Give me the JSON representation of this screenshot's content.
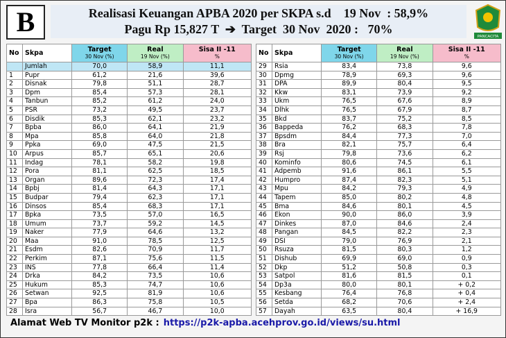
{
  "header": {
    "badge": "B",
    "title_line1": "Realisasi Keuangan APBA 2020 per SKPA s.d    19 Nov  : 58,9%",
    "title_line2": "Pagu Rp 15,827 T  ➔  Target  30 Nov  2020 :   70%",
    "logo_text": "PANCACITA"
  },
  "tables": [
    {
      "columns": [
        {
          "title": "No"
        },
        {
          "title": "Skpa"
        },
        {
          "title": "Target",
          "subtitle": "30 Nov (%)"
        },
        {
          "title": "Real",
          "subtitle": "19 Nov (%)"
        },
        {
          "title": "Sisa II -11",
          "subtitle": "%"
        }
      ],
      "summary": [
        "Jumlah",
        "70,0",
        "58,9",
        "11,1"
      ],
      "rows": [
        [
          "1",
          "Pupr",
          "61,2",
          "21,6",
          "39,6"
        ],
        [
          "2",
          "Disnak",
          "79,8",
          "51,1",
          "28,7"
        ],
        [
          "3",
          "Dpm",
          "85,4",
          "57,3",
          "28,1"
        ],
        [
          "4",
          "Tanbun",
          "85,2",
          "61,2",
          "24,0"
        ],
        [
          "5",
          "PSR",
          "73,2",
          "49,5",
          "23,7"
        ],
        [
          "6",
          "Disdik",
          "85,3",
          "62,1",
          "23,2"
        ],
        [
          "7",
          "Bpba",
          "86,0",
          "64,1",
          "21,9"
        ],
        [
          "8",
          "Mpa",
          "85,8",
          "64,0",
          "21,8"
        ],
        [
          "9",
          "Ppka",
          "69,0",
          "47,5",
          "21,5"
        ],
        [
          "10",
          "Arpus",
          "85,7",
          "65,1",
          "20,6"
        ],
        [
          "11",
          "Indag",
          "78,1",
          "58,2",
          "19,8"
        ],
        [
          "12",
          "Pora",
          "81,1",
          "62,5",
          "18,5"
        ],
        [
          "13",
          "Organ",
          "89,6",
          "72,3",
          "17,4"
        ],
        [
          "14",
          "Bpbj",
          "81,4",
          "64,3",
          "17,1"
        ],
        [
          "15",
          "Budpar",
          "79,4",
          "62,3",
          "17,1"
        ],
        [
          "16",
          "Dinsos",
          "85,4",
          "68,3",
          "17,1"
        ],
        [
          "17",
          "Bpka",
          "73,5",
          "57,0",
          "16,5"
        ],
        [
          "18",
          "Umum",
          "73,7",
          "59,2",
          "14,5"
        ],
        [
          "19",
          "Naker",
          "77,9",
          "64,6",
          "13,2"
        ],
        [
          "20",
          "Maa",
          "91,0",
          "78,5",
          "12,5"
        ],
        [
          "21",
          "Esdm",
          "82,6",
          "70,9",
          "11,7"
        ],
        [
          "22",
          "Perkim",
          "87,1",
          "75,6",
          "11,5"
        ],
        [
          "23",
          "INS",
          "77,8",
          "66,4",
          "11,4"
        ],
        [
          "24",
          "Drka",
          "84,2",
          "73,5",
          "10,6"
        ],
        [
          "25",
          "Hukum",
          "85,3",
          "74,7",
          "10,6"
        ],
        [
          "26",
          "Setwan",
          "92,5",
          "81,9",
          "10,6"
        ],
        [
          "27",
          "Bpa",
          "86,3",
          "75,8",
          "10,5"
        ],
        [
          "28",
          "Isra",
          "56,7",
          "46,7",
          "10,0"
        ]
      ]
    },
    {
      "columns": [
        {
          "title": "No"
        },
        {
          "title": "Skpa"
        },
        {
          "title": "Target",
          "subtitle": "30 Nov (%)"
        },
        {
          "title": "Real",
          "subtitle": "19 Nov (%)"
        },
        {
          "title": "Sisa II -11",
          "subtitle": "%"
        }
      ],
      "rows": [
        [
          "29",
          "Rsia",
          "83,4",
          "73,8",
          "9,6"
        ],
        [
          "30",
          "Dpmg",
          "78,9",
          "69,3",
          "9,6"
        ],
        [
          "31",
          "DPA",
          "89,9",
          "80,4",
          "9,5"
        ],
        [
          "32",
          "Kkw",
          "83,1",
          "73,9",
          "9,2"
        ],
        [
          "33",
          "Ukm",
          "76,5",
          "67,6",
          "8,9"
        ],
        [
          "34",
          "Dlhk",
          "76,5",
          "67,9",
          "8,7"
        ],
        [
          "35",
          "Bkd",
          "83,7",
          "75,2",
          "8,5"
        ],
        [
          "36",
          "Bappeda",
          "76,2",
          "68,3",
          "7,8"
        ],
        [
          "37",
          "Bpsdm",
          "84,4",
          "77,3",
          "7,0"
        ],
        [
          "38",
          "Bra",
          "82,1",
          "75,7",
          "6,4"
        ],
        [
          "39",
          "Rsj",
          "79,8",
          "73,6",
          "6,2"
        ],
        [
          "40",
          "Kominfo",
          "80,6",
          "74,5",
          "6,1"
        ],
        [
          "41",
          "Adpemb",
          "91,6",
          "86,1",
          "5,5"
        ],
        [
          "42",
          "Humpro",
          "87,4",
          "82,3",
          "5,1"
        ],
        [
          "43",
          "Mpu",
          "84,2",
          "79,3",
          "4,9"
        ],
        [
          "44",
          "Tapem",
          "85,0",
          "80,2",
          "4,8"
        ],
        [
          "45",
          "Bma",
          "84,6",
          "80,1",
          "4,5"
        ],
        [
          "46",
          "Ekon",
          "90,0",
          "86,0",
          "3,9"
        ],
        [
          "47",
          "Dinkes",
          "87,0",
          "84,6",
          "2,4"
        ],
        [
          "48",
          "Pangan",
          "84,5",
          "82,2",
          "2,3"
        ],
        [
          "49",
          "DSI",
          "79,0",
          "76,9",
          "2,1"
        ],
        [
          "50",
          "Rsuza",
          "81,5",
          "80,3",
          "1,2"
        ],
        [
          "51",
          "Dishub",
          "69,9",
          "69,0",
          "0,9"
        ],
        [
          "52",
          "Dkp",
          "51,2",
          "50,8",
          "0,3"
        ],
        [
          "53",
          "Satpol",
          "81,6",
          "81,5",
          "0,1"
        ],
        [
          "54",
          "Dp3a",
          "80,0",
          "80,1",
          "+ 0,2"
        ],
        [
          "55",
          "Kesbang",
          "76,4",
          "76,8",
          "+ 0,4"
        ],
        [
          "56",
          "Setda",
          "68,2",
          "70,6",
          "+ 2,4"
        ],
        [
          "57",
          "Dayah",
          "63,5",
          "80,4",
          "+ 16,9"
        ]
      ]
    }
  ],
  "footer": {
    "label": "Alamat Web TV Monitor p2k :",
    "url": "https://p2k-apba.acehprov.go.id/views/su.html"
  }
}
